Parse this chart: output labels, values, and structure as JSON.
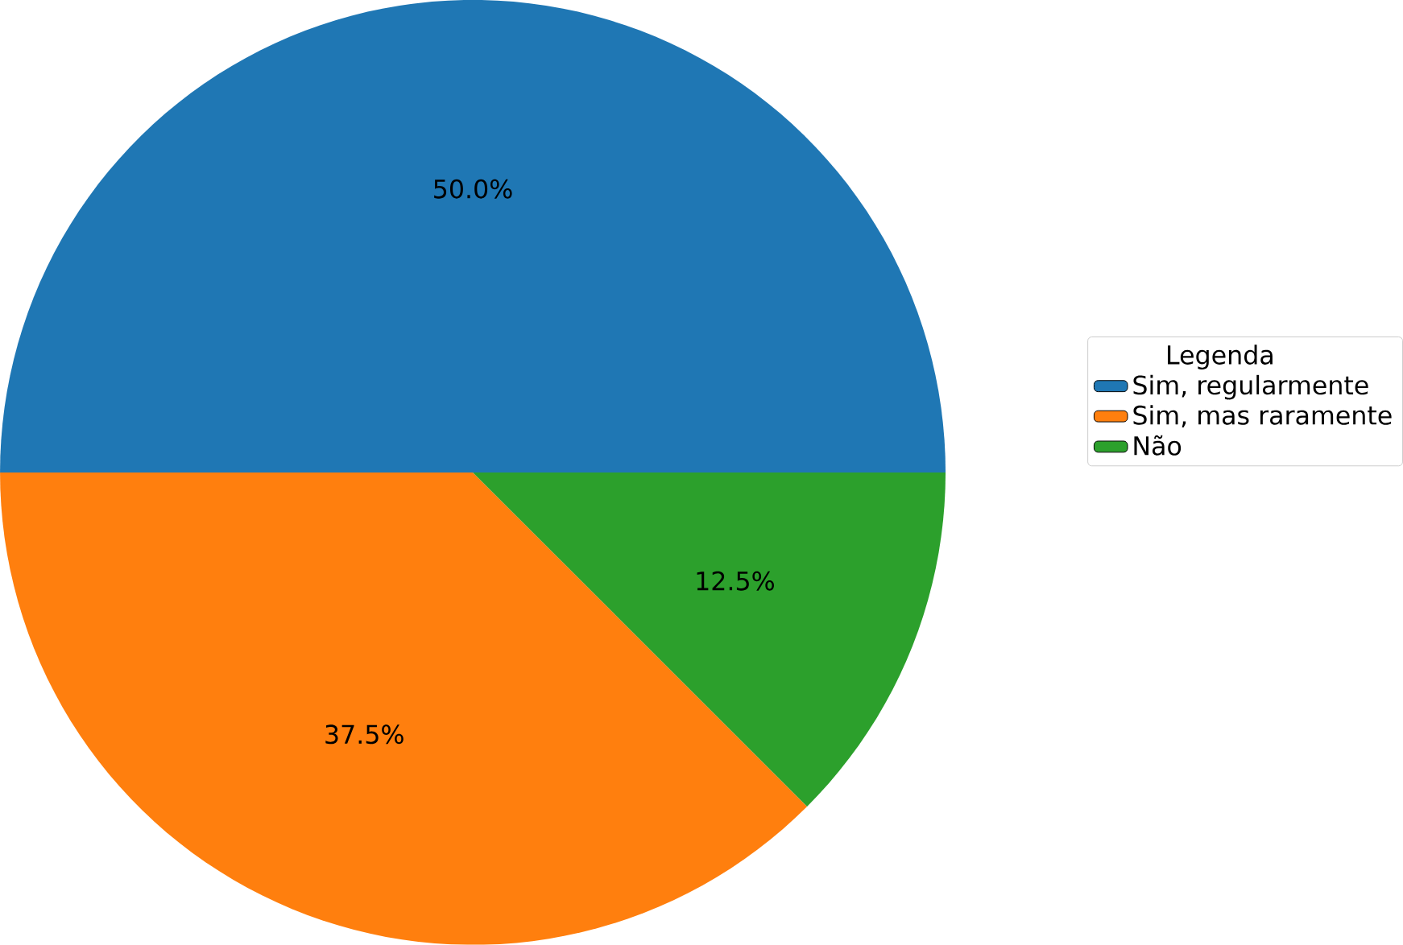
{
  "chart_data": {
    "type": "pie",
    "categories": [
      "Sim, regularmente",
      "Sim, mas raramente",
      "Não"
    ],
    "values": [
      50,
      37.5,
      12.5
    ],
    "colors": [
      "#1f77b4",
      "#ff7f0e",
      "#2ca02c"
    ],
    "value_labels": [
      "50.0%",
      "37.5%",
      "12.5%"
    ],
    "legend_title": "Legenda",
    "legend": "right"
  }
}
